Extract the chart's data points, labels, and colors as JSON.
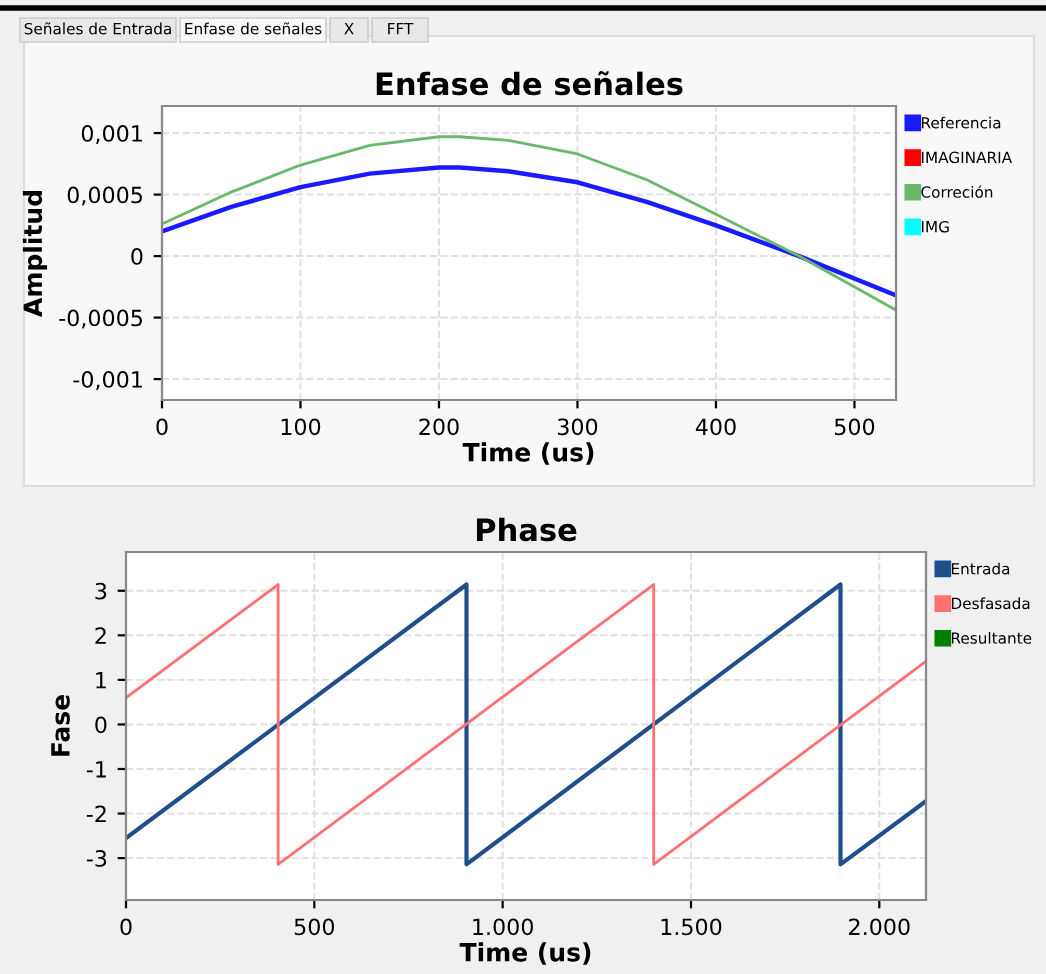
{
  "chart_data": [
    {
      "type": "line",
      "title": "Enfase de señales",
      "xlabel": "Time (us)",
      "ylabel": "Amplitud",
      "annotations": [
        "Señales de Entrada",
        "Enfase de señales",
        "X",
        "FFT"
      ],
      "xlim": [
        0,
        530
      ],
      "xticks": [
        0,
        100,
        200,
        300,
        400,
        500
      ],
      "ylim": [
        -0.00117,
        0.00122
      ],
      "yticks": [
        {
          "value": -0.001,
          "label": "-0,001"
        },
        {
          "value": -0.0005,
          "label": "-0,0005"
        },
        {
          "value": 0,
          "label": "0"
        },
        {
          "value": 0.0005,
          "label": "0,0005"
        },
        {
          "value": 0.001,
          "label": "0,001"
        }
      ],
      "grid": true,
      "legend": "right",
      "series": [
        {
          "name": "Referencia",
          "color": "#1a1aff",
          "x": [
            0,
            50,
            100,
            150,
            200,
            215,
            250,
            300,
            350,
            400,
            460,
            530
          ],
          "values": [
            0.0002,
            0.0004,
            0.00056,
            0.00067,
            0.00072,
            0.00072,
            0.00069,
            0.0006,
            0.00044,
            0.00025,
            0.0,
            -0.00032
          ]
        },
        {
          "name": "IMAGINARIA",
          "color": "#ff0000"
        },
        {
          "name": "Correción",
          "color": "#6ab86a",
          "x": [
            0,
            50,
            100,
            150,
            200,
            215,
            250,
            300,
            350,
            400,
            460,
            530
          ],
          "values": [
            0.00026,
            0.00052,
            0.00074,
            0.0009,
            0.00097,
            0.00097,
            0.00094,
            0.00083,
            0.00062,
            0.00034,
            0.0,
            -0.00044
          ]
        },
        {
          "name": "IMG",
          "color": "#00ffff"
        }
      ]
    },
    {
      "type": "line",
      "title": "Phase",
      "xlabel": "Time (us)",
      "ylabel": "Fase",
      "xlim": [
        0,
        2124
      ],
      "xticks": [
        0,
        {
          "value": 500,
          "label": "500"
        },
        {
          "value": 1000,
          "label": "1.000"
        },
        {
          "value": 1500,
          "label": "1.500"
        },
        {
          "value": 2000,
          "label": "2.000"
        }
      ],
      "ylim": [
        -3.94,
        3.87
      ],
      "yticks": [
        -3,
        -2,
        -1,
        0,
        1,
        2,
        3
      ],
      "grid": true,
      "legend": "right",
      "series": [
        {
          "name": "Entrada",
          "color": "#1f4e8c",
          "x": [
            0,
            904,
            904,
            1897,
            1897,
            2124
          ],
          "values": [
            -2.55,
            3.14,
            -3.14,
            3.14,
            -3.14,
            -1.72
          ]
        },
        {
          "name": "Desfasada",
          "color": "#ff7070",
          "x": [
            0,
            404,
            404,
            1401,
            1401,
            2124
          ],
          "values": [
            0.6,
            3.14,
            -3.14,
            3.14,
            -3.14,
            1.42
          ]
        },
        {
          "name": "Resultante",
          "color": "#008000"
        }
      ]
    }
  ]
}
